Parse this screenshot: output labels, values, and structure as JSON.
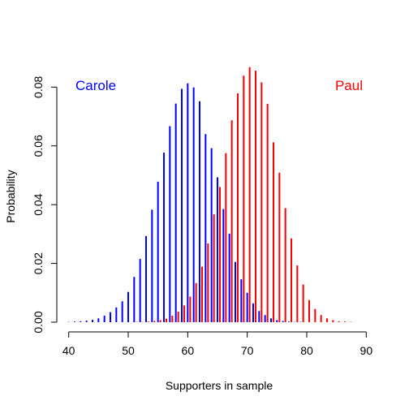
{
  "chart_data": {
    "type": "bar",
    "title": "",
    "xlabel": "Supporters in sample",
    "ylabel": "Probability",
    "xlim": [
      38,
      92
    ],
    "ylim": [
      0,
      0.087
    ],
    "x_ticks": [
      40,
      50,
      60,
      70,
      80,
      90
    ],
    "y_ticks": [
      0.0,
      0.02,
      0.04,
      0.06,
      0.08
    ],
    "y_tick_labels": [
      "0.00",
      "0.02",
      "0.04",
      "0.06",
      "0.08"
    ],
    "grid": false,
    "series": [
      {
        "name": "Carole",
        "color": "#0000ff",
        "x": [
          40,
          41,
          42,
          43,
          44,
          45,
          46,
          47,
          48,
          49,
          50,
          51,
          52,
          53,
          54,
          55,
          56,
          57,
          58,
          59,
          60,
          61,
          62,
          63,
          64,
          65,
          66,
          67,
          68,
          69,
          70,
          71,
          72,
          73,
          74,
          75,
          76,
          77,
          78,
          79,
          80
        ],
        "values": [
          0.0001,
          0.0002,
          0.0003,
          0.0005,
          0.0008,
          0.0013,
          0.0022,
          0.0034,
          0.005,
          0.0071,
          0.0103,
          0.0154,
          0.0215,
          0.0293,
          0.0383,
          0.0478,
          0.0577,
          0.0667,
          0.0744,
          0.0794,
          0.0813,
          0.0799,
          0.0752,
          0.064,
          0.0592,
          0.0493,
          0.0385,
          0.0301,
          0.0205,
          0.0146,
          0.01,
          0.0064,
          0.0038,
          0.0024,
          0.0013,
          0.0007,
          0.0004,
          0.0002,
          0.0001,
          0.0001,
          0.0
        ]
      },
      {
        "name": "Paul",
        "color": "#ff0000",
        "x": [
          50,
          51,
          52,
          53,
          54,
          55,
          56,
          57,
          58,
          59,
          60,
          61,
          62,
          63,
          64,
          65,
          66,
          67,
          68,
          69,
          70,
          71,
          72,
          73,
          74,
          75,
          76,
          77,
          78,
          79,
          80,
          81,
          82,
          83,
          84,
          85,
          86,
          87,
          88,
          89,
          90
        ],
        "values": [
          0.0,
          0.0001,
          0.0001,
          0.0002,
          0.0004,
          0.0007,
          0.0012,
          0.0022,
          0.0036,
          0.0057,
          0.0087,
          0.0133,
          0.0189,
          0.0268,
          0.0367,
          0.046,
          0.0575,
          0.0687,
          0.0779,
          0.0839,
          0.0868,
          0.0856,
          0.0816,
          0.0743,
          0.0612,
          0.0509,
          0.0388,
          0.0285,
          0.0193,
          0.0128,
          0.0075,
          0.0045,
          0.0024,
          0.0013,
          0.0007,
          0.0003,
          0.0002,
          0.0001,
          0.0,
          0.0,
          0.0
        ]
      }
    ]
  }
}
